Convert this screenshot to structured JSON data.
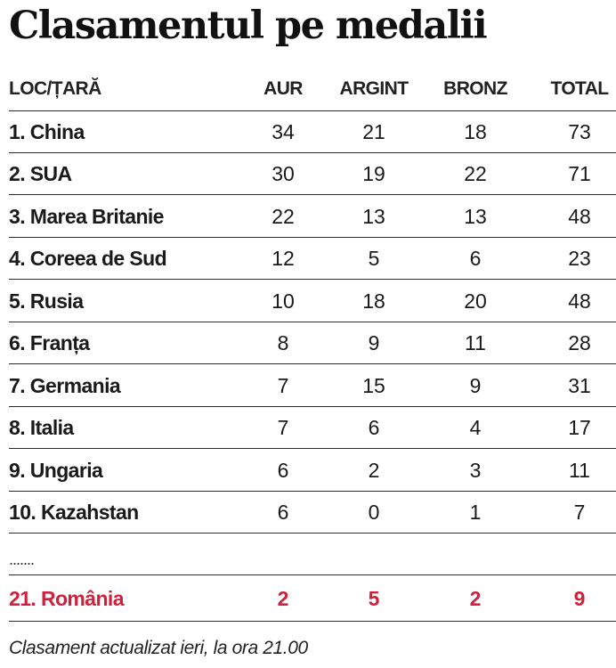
{
  "title": "Clasamentul pe medalii",
  "headers": {
    "place_country": "LOC/ȚARĂ",
    "gold": "AUR",
    "silver": "ARGINT",
    "bronze": "BRONZ",
    "total": "TOTAL"
  },
  "rows": [
    {
      "name": "1. China",
      "gold": "34",
      "silver": "21",
      "bronze": "18",
      "total": "73"
    },
    {
      "name": "2. SUA",
      "gold": "30",
      "silver": "19",
      "bronze": "22",
      "total": "71"
    },
    {
      "name": "3. Marea Britanie",
      "gold": "22",
      "silver": "13",
      "bronze": "13",
      "total": "48"
    },
    {
      "name": "4. Coreea de Sud",
      "gold": "12",
      "silver": "5",
      "bronze": "6",
      "total": "23"
    },
    {
      "name": "5. Rusia",
      "gold": "10",
      "silver": "18",
      "bronze": "20",
      "total": "48"
    },
    {
      "name": "6. Franța",
      "gold": "8",
      "silver": "9",
      "bronze": "11",
      "total": "28"
    },
    {
      "name": "7. Germania",
      "gold": "7",
      "silver": "15",
      "bronze": "9",
      "total": "31"
    },
    {
      "name": "8. Italia",
      "gold": "7",
      "silver": "6",
      "bronze": "4",
      "total": "17"
    },
    {
      "name": "9. Ungaria",
      "gold": "6",
      "silver": "2",
      "bronze": "3",
      "total": "11"
    },
    {
      "name": "10. Kazahstan",
      "gold": "6",
      "silver": "0",
      "bronze": "1",
      "total": "7"
    }
  ],
  "ellipsis": ".......",
  "highlight": {
    "name": "21. România",
    "gold": "2",
    "silver": "5",
    "bronze": "2",
    "total": "9"
  },
  "highlight_color": "#d0203c",
  "footnote": "Clasament actualizat ieri, la ora 21.00"
}
